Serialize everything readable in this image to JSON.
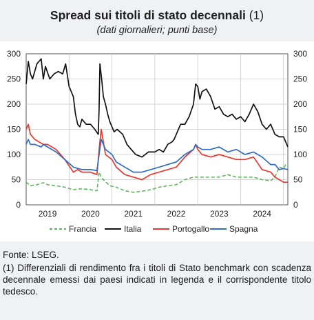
{
  "title": "Spread sui titoli di stato decennali",
  "title_note": "(1)",
  "subtitle": "(dati giornalieri; punti base)",
  "source": "Fonte: LSEG.",
  "note": "(1) Differenziali di rendimento fra i titoli di Stato benchmark con scadenza decennale emessi dai paesi indicati in legenda e il corrispondente titolo tedesco.",
  "chart_data": {
    "type": "line",
    "xlim": [
      2018.5,
      2024.6
    ],
    "ylim": [
      0,
      300
    ],
    "yticks": [
      0,
      50,
      100,
      150,
      200,
      250,
      300
    ],
    "ytick_labels": [
      "0",
      "50",
      "100",
      "150",
      "200",
      "250",
      "300"
    ],
    "xtick_labels": [
      "2019",
      "2020",
      "2021",
      "2022",
      "2023",
      "2024"
    ],
    "xtick_positions": [
      2019.0,
      2020.0,
      2021.0,
      2022.0,
      2023.0,
      2024.0
    ],
    "grid": true,
    "legend_position": "bottom",
    "series": [
      {
        "name": "Francia",
        "color": "#5cb85c",
        "dashed": true,
        "x": [
          2018.5,
          2018.6,
          2018.75,
          2018.9,
          2019.0,
          2019.2,
          2019.4,
          2019.6,
          2019.8,
          2020.0,
          2020.15,
          2020.2,
          2020.25,
          2020.3,
          2020.45,
          2020.6,
          2020.8,
          2021.0,
          2021.2,
          2021.4,
          2021.6,
          2021.8,
          2022.0,
          2022.2,
          2022.4,
          2022.6,
          2022.8,
          2023.0,
          2023.2,
          2023.4,
          2023.6,
          2023.8,
          2024.0,
          2024.2,
          2024.3,
          2024.4,
          2024.5,
          2024.55,
          2024.6
        ],
        "y": [
          45,
          38,
          40,
          44,
          40,
          38,
          35,
          30,
          32,
          30,
          28,
          65,
          55,
          50,
          38,
          35,
          28,
          25,
          27,
          30,
          35,
          38,
          40,
          50,
          55,
          55,
          55,
          55,
          60,
          55,
          55,
          55,
          50,
          48,
          55,
          75,
          72,
          80,
          80
        ]
      },
      {
        "name": "Italia",
        "color": "#111111",
        "dashed": false,
        "x": [
          2018.5,
          2018.55,
          2018.6,
          2018.65,
          2018.75,
          2018.85,
          2018.9,
          2018.95,
          2019.05,
          2019.15,
          2019.25,
          2019.35,
          2019.42,
          2019.5,
          2019.6,
          2019.65,
          2019.7,
          2019.75,
          2019.8,
          2019.9,
          2020.0,
          2020.1,
          2020.18,
          2020.2,
          2020.22,
          2020.26,
          2020.3,
          2020.35,
          2020.4,
          2020.45,
          2020.5,
          2020.55,
          2020.62,
          2020.75,
          2020.85,
          2020.95,
          2021.05,
          2021.2,
          2021.35,
          2021.5,
          2021.6,
          2021.7,
          2021.8,
          2021.9,
          2021.95,
          2022.0,
          2022.1,
          2022.2,
          2022.3,
          2022.4,
          2022.45,
          2022.5,
          2022.55,
          2022.6,
          2022.7,
          2022.8,
          2022.9,
          2023.0,
          2023.1,
          2023.2,
          2023.3,
          2023.4,
          2023.5,
          2023.6,
          2023.7,
          2023.8,
          2023.9,
          2024.0,
          2024.1,
          2024.2,
          2024.3,
          2024.4,
          2024.5,
          2024.55,
          2024.6
        ],
        "y": [
          240,
          285,
          260,
          250,
          280,
          290,
          250,
          275,
          250,
          260,
          265,
          260,
          280,
          235,
          215,
          180,
          160,
          155,
          170,
          160,
          160,
          150,
          140,
          190,
          280,
          250,
          215,
          200,
          180,
          165,
          155,
          145,
          150,
          140,
          120,
          110,
          100,
          95,
          105,
          105,
          110,
          105,
          120,
          125,
          130,
          140,
          160,
          160,
          175,
          200,
          240,
          235,
          210,
          225,
          230,
          215,
          190,
          195,
          180,
          175,
          180,
          170,
          175,
          165,
          180,
          200,
          185,
          160,
          150,
          160,
          140,
          135,
          135,
          125,
          115
        ]
      },
      {
        "name": "Portogallo",
        "color": "#e8382e",
        "dashed": false,
        "x": [
          2018.5,
          2018.55,
          2018.6,
          2018.7,
          2018.8,
          2018.9,
          2019.0,
          2019.2,
          2019.4,
          2019.6,
          2019.7,
          2019.8,
          2020.0,
          2020.15,
          2020.2,
          2020.25,
          2020.35,
          2020.5,
          2020.6,
          2020.8,
          2021.0,
          2021.2,
          2021.4,
          2021.6,
          2021.8,
          2022.0,
          2022.2,
          2022.4,
          2022.45,
          2022.5,
          2022.6,
          2022.8,
          2023.0,
          2023.2,
          2023.4,
          2023.6,
          2023.8,
          2024.0,
          2024.2,
          2024.3,
          2024.4,
          2024.5,
          2024.6
        ],
        "y": [
          150,
          160,
          140,
          130,
          125,
          120,
          120,
          110,
          90,
          65,
          70,
          65,
          65,
          60,
          110,
          150,
          100,
          90,
          75,
          60,
          55,
          50,
          60,
          65,
          70,
          75,
          95,
          110,
          120,
          110,
          100,
          95,
          100,
          95,
          90,
          90,
          95,
          70,
          65,
          55,
          50,
          45,
          45
        ]
      },
      {
        "name": "Spagna",
        "color": "#2f6cc4",
        "dashed": false,
        "x": [
          2018.5,
          2018.55,
          2018.6,
          2018.7,
          2018.85,
          2018.9,
          2019.0,
          2019.2,
          2019.4,
          2019.6,
          2019.8,
          2020.0,
          2020.15,
          2020.2,
          2020.25,
          2020.35,
          2020.5,
          2020.6,
          2020.8,
          2021.0,
          2021.2,
          2021.4,
          2021.6,
          2021.8,
          2022.0,
          2022.2,
          2022.4,
          2022.45,
          2022.5,
          2022.6,
          2022.8,
          2023.0,
          2023.2,
          2023.4,
          2023.6,
          2023.8,
          2024.0,
          2024.2,
          2024.3,
          2024.4,
          2024.5,
          2024.6
        ],
        "y": [
          120,
          130,
          120,
          120,
          115,
          120,
          115,
          105,
          90,
          75,
          70,
          70,
          68,
          100,
          130,
          110,
          100,
          85,
          75,
          65,
          65,
          70,
          75,
          80,
          85,
          100,
          110,
          120,
          115,
          110,
          110,
          115,
          105,
          110,
          100,
          105,
          95,
          80,
          80,
          70,
          72,
          70
        ]
      }
    ]
  }
}
